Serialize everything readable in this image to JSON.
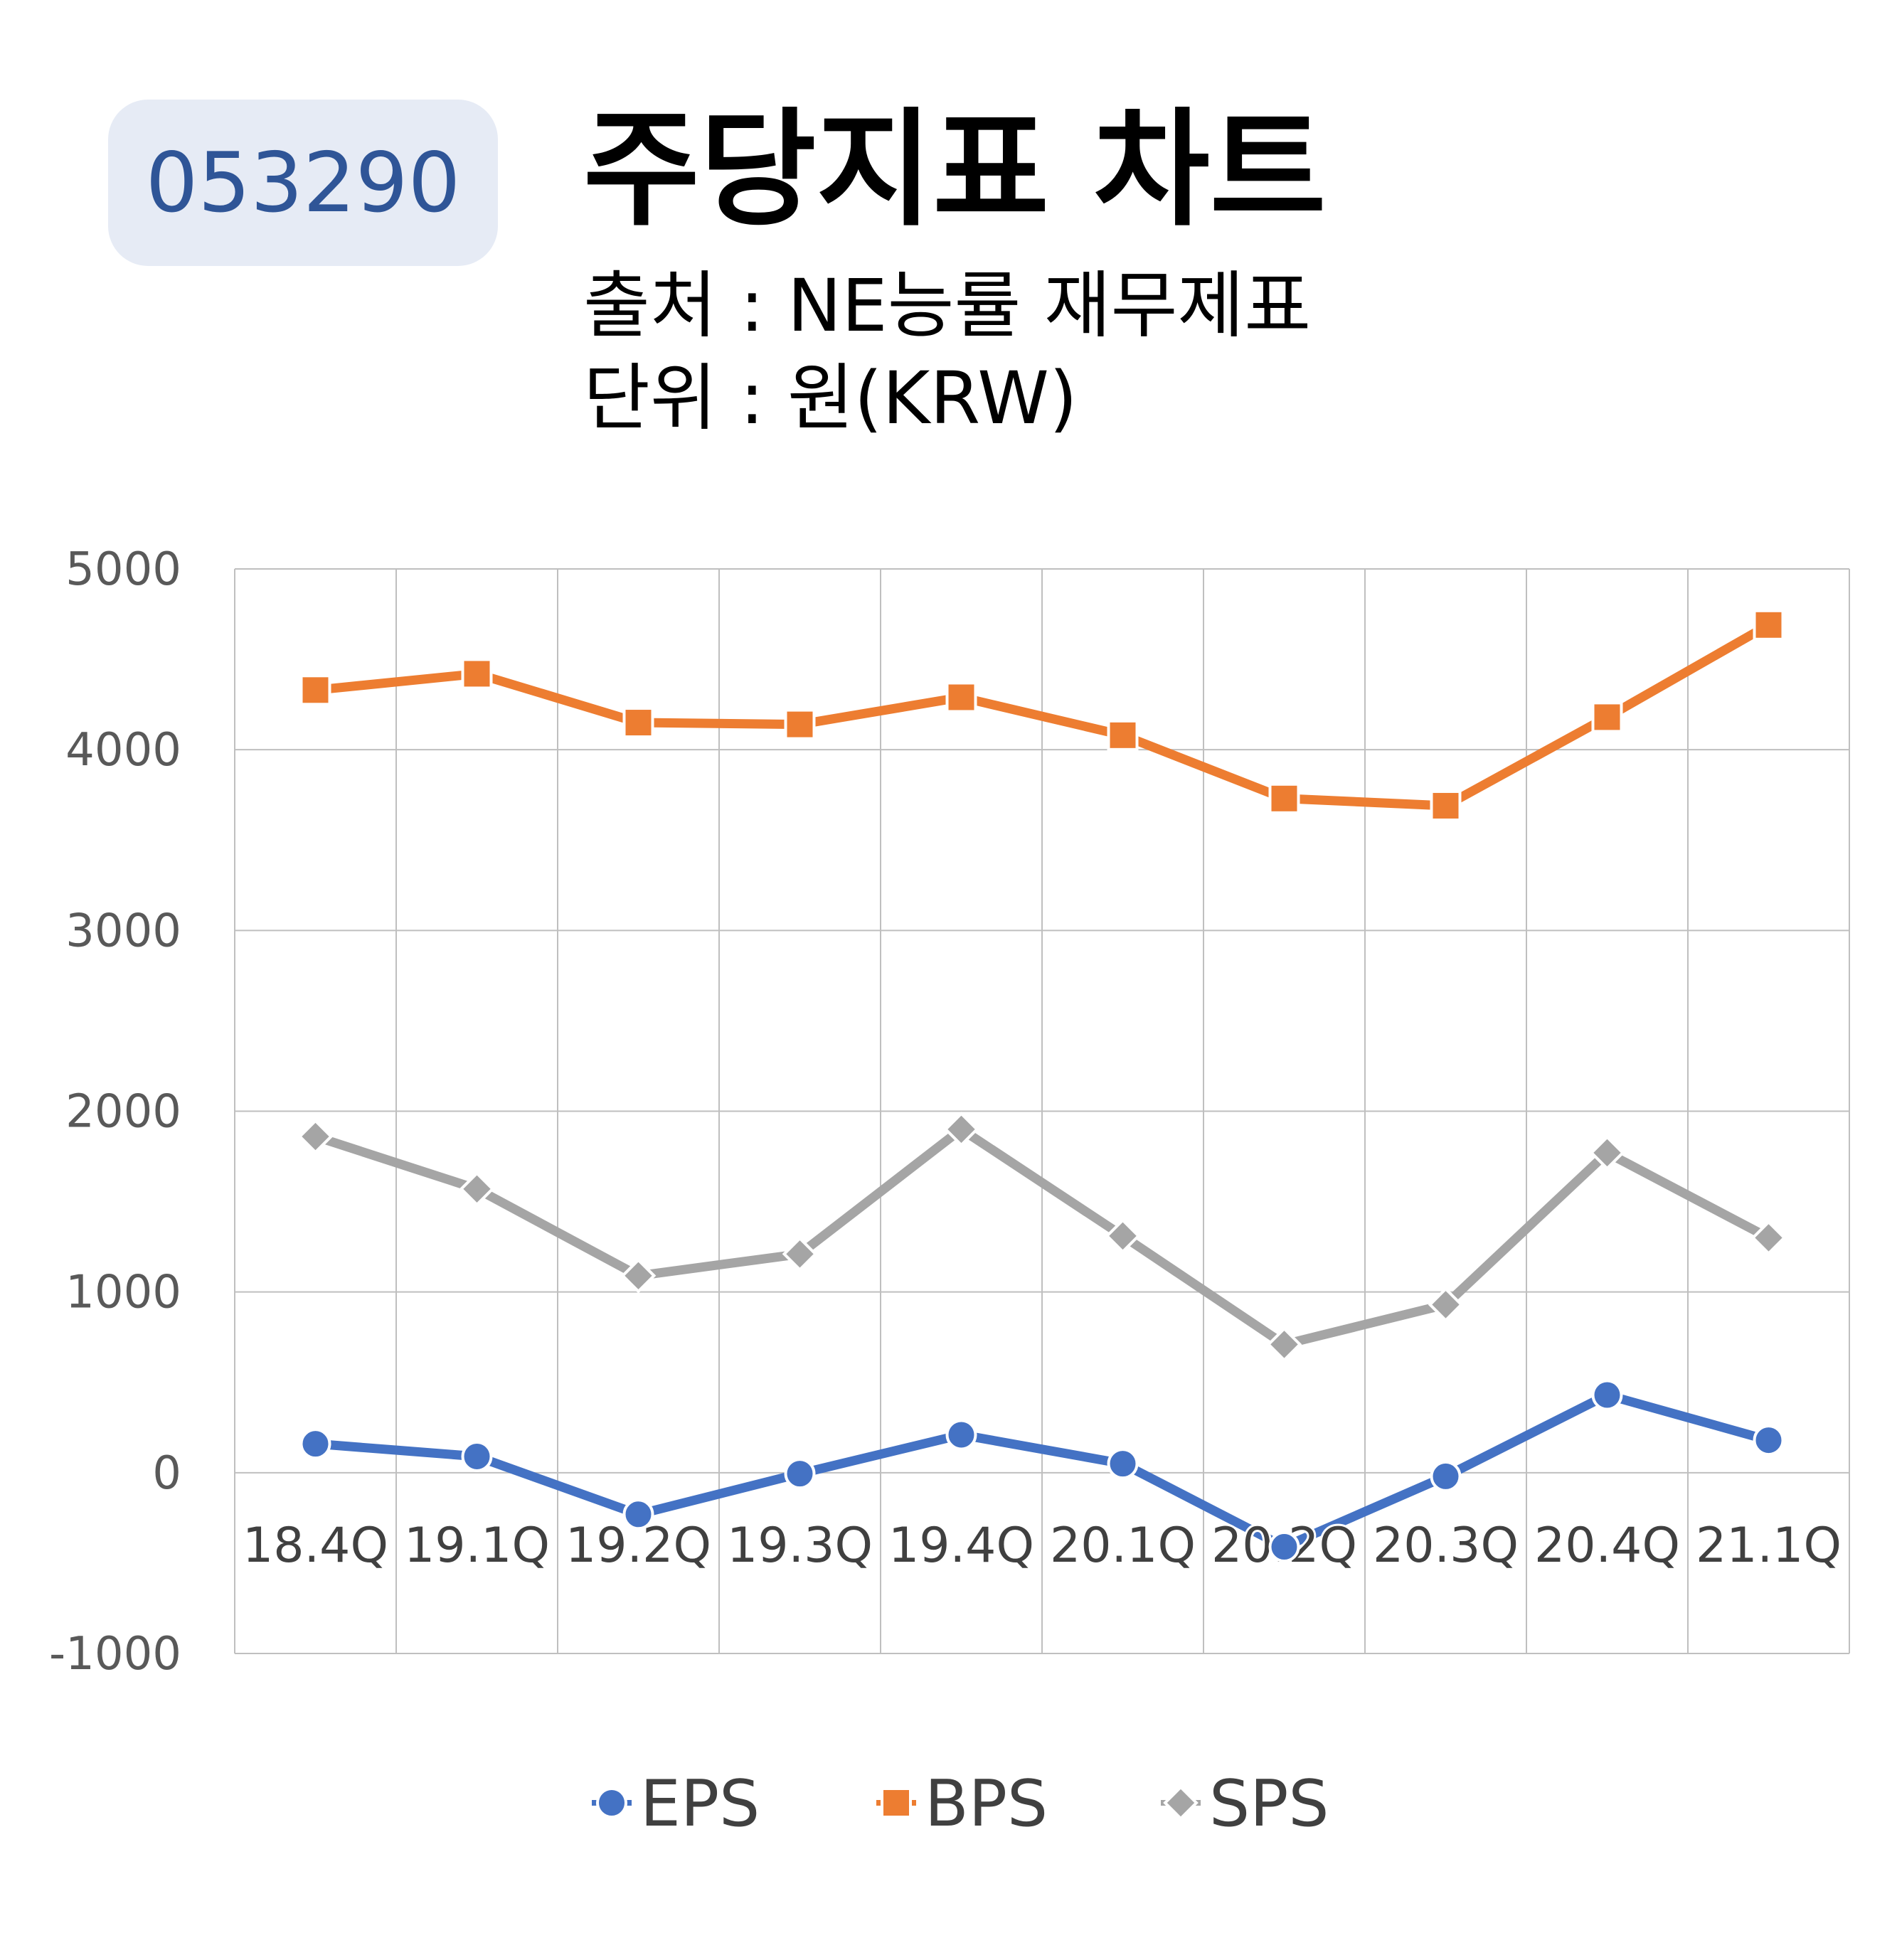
{
  "badge": {
    "code": "053290"
  },
  "header": {
    "title": "주당지표 차트",
    "source": "출처 : NE능률 재무제표",
    "unit": "단위 : 원(KRW)"
  },
  "colors": {
    "EPS": "#4472c4",
    "BPS": "#ed7d31",
    "SPS": "#a5a5a5",
    "grid": "#bfbfbf"
  },
  "chart_data": {
    "type": "line",
    "categories": [
      "18.4Q",
      "19.1Q",
      "19.2Q",
      "19.3Q",
      "19.4Q",
      "20.1Q",
      "20.2Q",
      "20.3Q",
      "20.4Q",
      "21.1Q"
    ],
    "ylim": [
      -1000,
      5000
    ],
    "yticks": [
      -1000,
      0,
      1000,
      2000,
      3000,
      4000,
      5000
    ],
    "grid": true,
    "legend_position": "bottom",
    "series": [
      {
        "name": "EPS",
        "marker": "circle",
        "color": "#4472c4",
        "values": [
          160,
          90,
          -230,
          -5,
          210,
          50,
          -410,
          -20,
          430,
          180
        ]
      },
      {
        "name": "BPS",
        "marker": "square",
        "color": "#ed7d31",
        "values": [
          4330,
          4420,
          4150,
          4140,
          4290,
          4080,
          3730,
          3690,
          4180,
          4690
        ]
      },
      {
        "name": "SPS",
        "marker": "diamond",
        "color": "#a5a5a5",
        "values": [
          1860,
          1570,
          1090,
          1210,
          1900,
          1310,
          710,
          930,
          1770,
          1300
        ]
      }
    ]
  }
}
